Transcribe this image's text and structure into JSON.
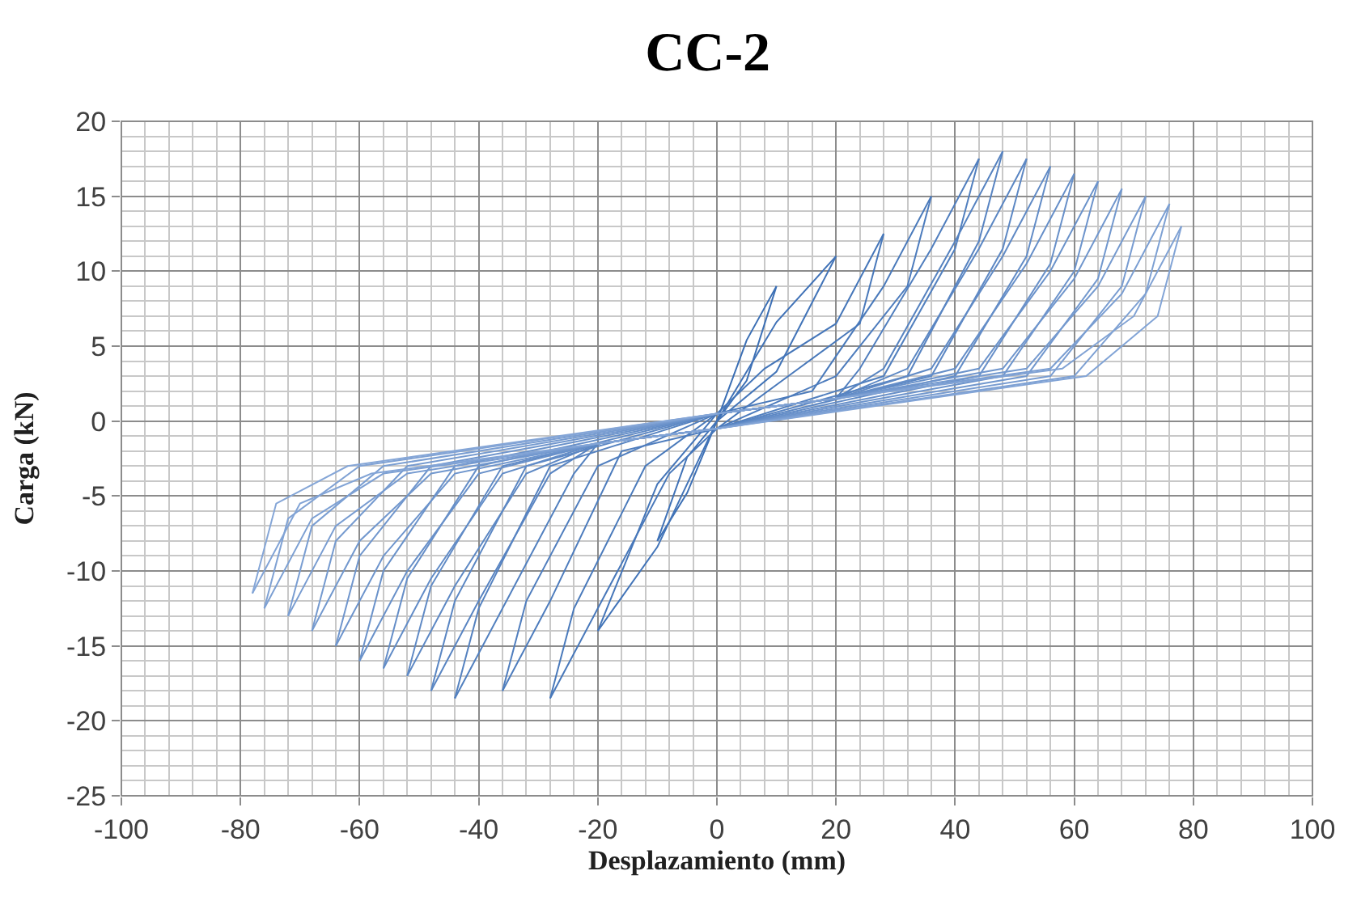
{
  "chart_data": {
    "type": "line",
    "title": "CC-2",
    "xlabel": "Desplazamiento (mm)",
    "ylabel": "Carga (kN)",
    "xlim": [
      -100,
      100
    ],
    "xticks": [
      -100,
      -80,
      -60,
      -40,
      -20,
      0,
      20,
      40,
      60,
      80,
      100
    ],
    "ylim": [
      -25,
      20
    ],
    "yticks": [
      -25,
      -20,
      -15,
      -10,
      -5,
      0,
      5,
      10,
      15,
      20
    ],
    "grid": true,
    "marker": "none",
    "line_style": "solid",
    "series": [
      {
        "color": "#3a6eb4",
        "x": [
          0,
          5,
          10
        ],
        "values": [
          0,
          5.4,
          9
        ]
      },
      {
        "color": "#3d70b5",
        "x": [
          10,
          5,
          0,
          -5,
          -10
        ],
        "values": [
          9,
          2.7,
          0,
          -4.8,
          -8
        ]
      },
      {
        "color": "#4072b7",
        "x": [
          -10,
          -5,
          0,
          10,
          20
        ],
        "values": [
          -8,
          -2.4,
          0,
          6.6,
          11
        ]
      },
      {
        "color": "#4274b8",
        "x": [
          20,
          10,
          0,
          -10,
          -20
        ],
        "values": [
          11,
          3.3,
          0,
          -8.4,
          -14
        ]
      },
      {
        "color": "#4576b9",
        "x": [
          -20,
          -10,
          0,
          8,
          20,
          28
        ],
        "values": [
          -14,
          -4.2,
          0.5,
          3.5,
          6.5,
          12.5
        ]
      },
      {
        "color": "#4878ba",
        "x": [
          28,
          24,
          12,
          0,
          -8,
          -20,
          -28
        ],
        "values": [
          12.5,
          6.5,
          3,
          -0.5,
          -3.5,
          -12.5,
          -18.5
        ]
      },
      {
        "color": "#4a7abb",
        "x": [
          -28,
          -24,
          -12,
          0,
          16,
          28,
          36
        ],
        "values": [
          -18.5,
          -12.5,
          -3,
          0.5,
          2,
          9,
          15
        ]
      },
      {
        "color": "#4d7cbd",
        "x": [
          36,
          32,
          20,
          0,
          -16,
          -28,
          -36
        ],
        "values": [
          15,
          9,
          3,
          -0.5,
          -2,
          -12,
          -18
        ]
      },
      {
        "color": "#507ebe",
        "x": [
          -36,
          -32,
          -20,
          0,
          20,
          24,
          36,
          44
        ],
        "values": [
          -18,
          -12,
          -3,
          0.5,
          1.5,
          3.5,
          11.5,
          17.5
        ]
      },
      {
        "color": "#5280bf",
        "x": [
          44,
          40,
          28,
          0,
          -20,
          -24,
          -36,
          -44
        ],
        "values": [
          17.5,
          11.5,
          3,
          -0.5,
          -1.5,
          -3.5,
          -12.5,
          -18.5
        ]
      },
      {
        "color": "#5582c0",
        "x": [
          -44,
          -40,
          -28,
          0,
          20,
          28,
          40,
          48
        ],
        "values": [
          -18.5,
          -12.5,
          -3,
          0.5,
          1.5,
          3.5,
          12,
          18
        ]
      },
      {
        "color": "#5884c2",
        "x": [
          48,
          44,
          32,
          0,
          -20,
          -28,
          -40,
          -48
        ],
        "values": [
          18,
          12,
          3,
          -0.5,
          -1.5,
          -3.5,
          -12,
          -18
        ]
      },
      {
        "color": "#5a86c3",
        "x": [
          -48,
          -44,
          -32,
          0,
          20,
          32,
          44,
          52
        ],
        "values": [
          -18,
          -12,
          -3,
          0.5,
          1.5,
          3.5,
          11.5,
          17.5
        ]
      },
      {
        "color": "#5d88c4",
        "x": [
          52,
          48,
          36,
          0,
          -20,
          -32,
          -44,
          -52
        ],
        "values": [
          17.5,
          11.5,
          3,
          -0.5,
          -1.5,
          -3.5,
          -11,
          -17
        ]
      },
      {
        "color": "#608ac5",
        "x": [
          -52,
          -48,
          -36,
          0,
          20,
          36,
          48,
          56
        ],
        "values": [
          -17,
          -11,
          -3,
          0.5,
          1.5,
          3.5,
          11,
          17
        ]
      },
      {
        "color": "#628cc7",
        "x": [
          56,
          52,
          40,
          0,
          -20,
          -36,
          -48,
          -56
        ],
        "values": [
          17,
          11,
          3,
          -0.5,
          -1.5,
          -3.5,
          -10.5,
          -16.5
        ]
      },
      {
        "color": "#658ec8",
        "x": [
          -56,
          -52,
          -40,
          0,
          20,
          40,
          52,
          60
        ],
        "values": [
          -16.5,
          -10.5,
          -3,
          0.5,
          1.5,
          3.5,
          10.5,
          16.5
        ]
      },
      {
        "color": "#6890c9",
        "x": [
          60,
          56,
          44,
          0,
          -20,
          -40,
          -52,
          -60
        ],
        "values": [
          16.5,
          10.5,
          3,
          -0.5,
          -1.5,
          -3.5,
          -10,
          -16
        ]
      },
      {
        "color": "#6a92ca",
        "x": [
          -60,
          -56,
          -44,
          0,
          20,
          44,
          56,
          64
        ],
        "values": [
          -16,
          -10,
          -3,
          0.5,
          1.5,
          3.5,
          10,
          16
        ]
      },
      {
        "color": "#6d94cc",
        "x": [
          64,
          60,
          48,
          0,
          -20,
          -44,
          -56,
          -64
        ],
        "values": [
          16,
          10,
          3,
          -0.5,
          -1.5,
          -3.5,
          -9,
          -15
        ]
      },
      {
        "color": "#7096cd",
        "x": [
          -64,
          -60,
          -48,
          0,
          20,
          48,
          60,
          68
        ],
        "values": [
          -15,
          -9,
          -3,
          0.5,
          1.5,
          3.5,
          9.5,
          15.5
        ]
      },
      {
        "color": "#7298ce",
        "x": [
          68,
          64,
          52,
          0,
          -20,
          -48,
          -60,
          -68
        ],
        "values": [
          15.5,
          9.5,
          3,
          -0.5,
          -1.5,
          -3.5,
          -8,
          -14
        ]
      },
      {
        "color": "#759acf",
        "x": [
          -68,
          -64,
          -52,
          0,
          20,
          52,
          64,
          72
        ],
        "values": [
          -14,
          -8,
          -3,
          0.5,
          1.5,
          3.5,
          9,
          15
        ]
      },
      {
        "color": "#789cd1",
        "x": [
          72,
          68,
          56,
          0,
          -20,
          -52,
          -64,
          -72
        ],
        "values": [
          15,
          9,
          3,
          -0.5,
          -1.5,
          -3.5,
          -7,
          -13
        ]
      },
      {
        "color": "#7a9ed2",
        "x": [
          -72,
          -68,
          -56,
          0,
          20,
          56,
          68,
          76
        ],
        "values": [
          -13,
          -7,
          -3,
          0.5,
          1.5,
          3.5,
          8.5,
          14.5
        ]
      },
      {
        "color": "#7da0d3",
        "x": [
          76,
          72,
          60,
          0,
          -20,
          -56,
          -68,
          -76
        ],
        "values": [
          14.5,
          8.5,
          3,
          -0.5,
          -1.5,
          -3.5,
          -6.5,
          -12.5
        ]
      },
      {
        "color": "#80a2d4",
        "x": [
          -76,
          -72,
          -60,
          0,
          20,
          58,
          70,
          78
        ],
        "values": [
          -12.5,
          -6.5,
          -3,
          0.5,
          1.5,
          3.5,
          7,
          13
        ]
      },
      {
        "color": "#82a4d6",
        "x": [
          78,
          74,
          62,
          0,
          -20,
          -58,
          -70,
          -78
        ],
        "values": [
          13,
          7,
          3,
          -0.5,
          -1.5,
          -3.5,
          -5.5,
          -11.5
        ]
      },
      {
        "color": "#85a6d7",
        "x": [
          -78,
          -74,
          -62,
          0
        ],
        "values": [
          -11.5,
          -5.5,
          -3,
          0.5
        ]
      }
    ]
  }
}
